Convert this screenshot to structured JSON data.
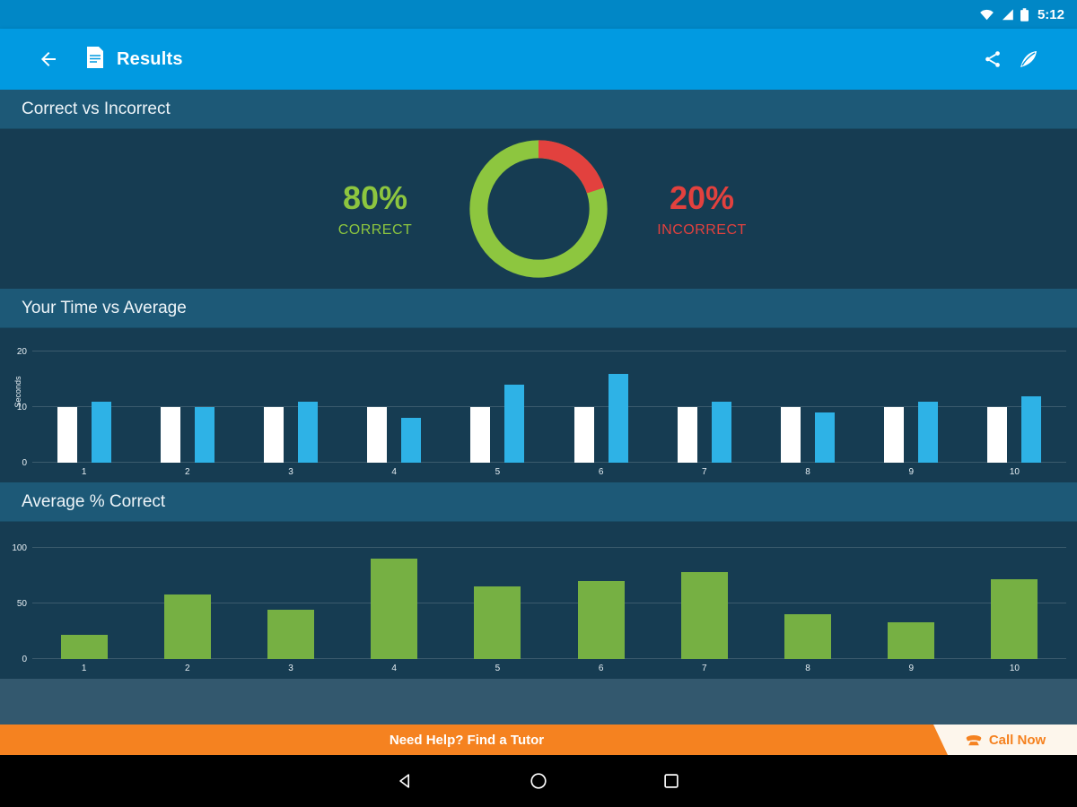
{
  "status_bar": {
    "time": "5:12"
  },
  "app_bar": {
    "title": "Results"
  },
  "sections": {
    "correct_vs_incorrect": {
      "title": "Correct vs Incorrect"
    },
    "time_vs_average": {
      "title": "Your Time vs Average"
    },
    "average_pct_correct": {
      "title": "Average % Correct"
    }
  },
  "donut": {
    "correct_pct": "80%",
    "correct_label": "CORRECT",
    "incorrect_pct": "20%",
    "incorrect_label": "INCORRECT"
  },
  "banner": {
    "help_text": "Need Help? Find a Tutor",
    "call_text": "Call Now"
  },
  "colors": {
    "app_bar_blue": "#019ae1",
    "status_bar_blue": "#0187c6",
    "background_navy": "#163c52",
    "section_band_blue": "#1d5977",
    "correct_green": "#8dc63f",
    "incorrect_red": "#e2413e",
    "your_time_bar_white": "#ffffff",
    "average_bar_blue": "#2eb2e6",
    "percent_bar_green": "#76b043",
    "banner_orange": "#f58220",
    "call_now_bg": "#fdf6ec"
  },
  "icons": {
    "back": "arrow-left",
    "results": "document",
    "share": "share-nodes",
    "feedback": "quill-pen",
    "wifi": "wifi-fan",
    "signal": "cell-signal-triangle",
    "battery": "battery",
    "phone": "telephone",
    "nav_back": "triangle-left-outline",
    "nav_home": "circle-outline",
    "nav_recents": "square-outline"
  },
  "chart_data": [
    {
      "type": "pie",
      "title": "Correct vs Incorrect",
      "slices": [
        {
          "label": "Correct",
          "value": 80,
          "color": "#8dc63f"
        },
        {
          "label": "Incorrect",
          "value": 20,
          "color": "#e2413e"
        }
      ]
    },
    {
      "type": "bar",
      "title": "Your Time vs Average",
      "xlabel": "",
      "ylabel": "Seconds",
      "ylim": [
        0,
        20
      ],
      "yticks": [
        0,
        10,
        20
      ],
      "grid": true,
      "legend": "none",
      "categories": [
        "1",
        "2",
        "3",
        "4",
        "5",
        "6",
        "7",
        "8",
        "9",
        "10"
      ],
      "series": [
        {
          "name": "Your Time",
          "color": "#ffffff",
          "values": [
            10,
            10,
            10,
            10,
            10,
            10,
            10,
            10,
            10,
            10
          ]
        },
        {
          "name": "Average",
          "color": "#2eb2e6",
          "values": [
            11,
            10,
            11,
            8,
            14,
            16,
            11,
            9,
            11,
            12
          ]
        }
      ]
    },
    {
      "type": "bar",
      "title": "Average % Correct",
      "xlabel": "",
      "ylabel": "",
      "ylim": [
        0,
        100
      ],
      "yticks": [
        0,
        50,
        100
      ],
      "grid": true,
      "legend": "none",
      "categories": [
        "1",
        "2",
        "3",
        "4",
        "5",
        "6",
        "7",
        "8",
        "9",
        "10"
      ],
      "series": [
        {
          "name": "Average % Correct",
          "color": "#76b043",
          "values": [
            22,
            58,
            44,
            90,
            65,
            70,
            78,
            40,
            33,
            72
          ]
        }
      ]
    }
  ]
}
